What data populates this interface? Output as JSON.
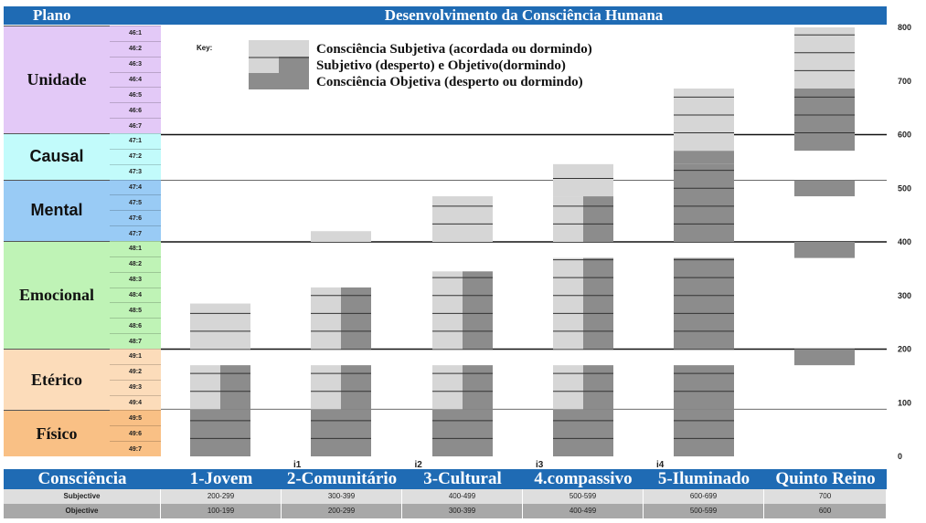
{
  "header": {
    "plano_label": "Plano",
    "title": "Desenvolvimento da Consciência Humana"
  },
  "planes": [
    {
      "name": "Unidade",
      "color": "#e3c9f7",
      "sans": false,
      "levels": [
        "46:1",
        "46:2",
        "46:3",
        "46:4",
        "46:5",
        "46:6",
        "46:7"
      ]
    },
    {
      "name": "Causal",
      "color": "#c2fbfb",
      "sans": true,
      "levels": [
        "47:1",
        "47:2",
        "47:3"
      ]
    },
    {
      "name": "Mental",
      "color": "#99cbf5",
      "sans": true,
      "levels": [
        "47:4",
        "47:5",
        "47:6",
        "47:7"
      ]
    },
    {
      "name": "Emocional",
      "color": "#bff3b6",
      "sans": false,
      "levels": [
        "48:1",
        "48:2",
        "48:3",
        "48:4",
        "48:5",
        "48:6",
        "48:7"
      ]
    },
    {
      "name": "Etérico",
      "color": "#fcdcba",
      "sans": false,
      "levels": [
        "49:1",
        "49:2",
        "49:3",
        "49:4"
      ]
    },
    {
      "name": "Físico",
      "color": "#f9c085",
      "sans": false,
      "levels": [
        "49:5",
        "49:6",
        "49:7"
      ]
    }
  ],
  "legend": {
    "key_label": "Key:",
    "items": [
      {
        "label": "Consciência Subjetiva (acordada ou dormindo)",
        "kind": "subjective"
      },
      {
        "label": "Subjetivo (desperto) e Objetivo(dormindo)",
        "kind": "mixed"
      },
      {
        "label": "Consciência Objetiva (desperto ou dormindo)",
        "kind": "objective"
      }
    ]
  },
  "colors": {
    "light": "#d6d6d6",
    "dark": "#8c8c8c",
    "header_blue": "#1f6bb4"
  },
  "chart_data": {
    "type": "bar",
    "title": "Desenvolvimento da Consciência Humana",
    "categories": [
      "1-Jovem",
      "2-Comunitário",
      "3-Cultural",
      "4.compassivo",
      "5-Iluminado",
      "Quinto Reino"
    ],
    "y_ticks": [
      0,
      100,
      200,
      300,
      400,
      500,
      600,
      700,
      800
    ],
    "ylim": [
      0,
      800
    ],
    "x_markers": [
      "i1",
      "i2",
      "i3",
      "i4"
    ],
    "series": [
      {
        "name": "Subjective",
        "ranges": [
          [
            200,
            299
          ],
          [
            300,
            399
          ],
          [
            400,
            499
          ],
          [
            500,
            599
          ],
          [
            600,
            699
          ],
          [
            700,
            800
          ]
        ]
      },
      {
        "name": "Objective",
        "ranges": [
          [
            100,
            199
          ],
          [
            200,
            299
          ],
          [
            300,
            399
          ],
          [
            400,
            499
          ],
          [
            500,
            599
          ],
          [
            600,
            699
          ]
        ]
      }
    ]
  },
  "bottom_table": {
    "header_label": "Consciência",
    "columns": [
      "1-Jovem",
      "2-Comunitário",
      "3-Cultural",
      "4.compassivo",
      "5-Iluminado",
      "Quinto Reino"
    ],
    "rows": [
      {
        "label": "Subjective",
        "values": [
          "200-299",
          "300-399",
          "400-499",
          "500-599",
          "600-699",
          "700"
        ]
      },
      {
        "label": "Objective",
        "values": [
          "100-199",
          "200-299",
          "300-399",
          "400-499",
          "500-599",
          "600"
        ]
      }
    ]
  }
}
